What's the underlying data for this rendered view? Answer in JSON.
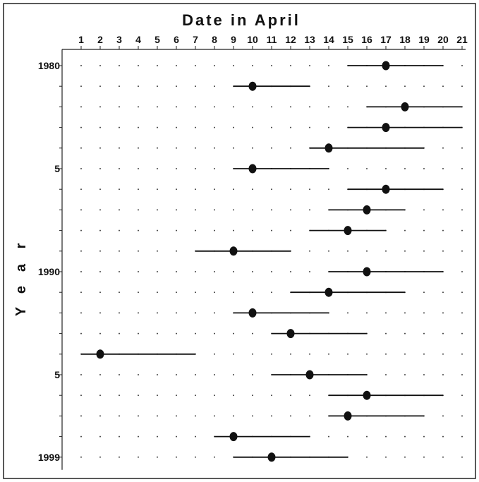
{
  "chart_data": {
    "type": "range_dot",
    "title": "Date in April",
    "xlabel": "Date in April",
    "ylabel": "Year",
    "x_ticks": [
      1,
      2,
      3,
      4,
      5,
      6,
      7,
      8,
      9,
      10,
      11,
      12,
      13,
      14,
      15,
      16,
      17,
      18,
      19,
      20,
      21
    ],
    "x_range": [
      0,
      21.5
    ],
    "y_tick_labels": [
      {
        "year": 1980,
        "label": "1980"
      },
      {
        "year": 1985,
        "label": "5"
      },
      {
        "year": 1990,
        "label": "1990"
      },
      {
        "year": 1995,
        "label": "5"
      },
      {
        "year": 1999,
        "label": "1999"
      }
    ],
    "y_range": [
      1980,
      1999
    ],
    "grid": "dotted",
    "data": [
      {
        "year": 1980,
        "start": 15,
        "mean": 17,
        "end": 20
      },
      {
        "year": 1981,
        "start": 9,
        "mean": 10,
        "end": 13
      },
      {
        "year": 1982,
        "start": 16,
        "mean": 18,
        "end": 21
      },
      {
        "year": 1983,
        "start": 15,
        "mean": 17,
        "end": 21
      },
      {
        "year": 1984,
        "start": 13,
        "mean": 14,
        "end": 19
      },
      {
        "year": 1985,
        "start": 9,
        "mean": 10,
        "end": 14
      },
      {
        "year": 1986,
        "start": 15,
        "mean": 17,
        "end": 20
      },
      {
        "year": 1987,
        "start": 14,
        "mean": 16,
        "end": 18
      },
      {
        "year": 1988,
        "start": 13,
        "mean": 15,
        "end": 17
      },
      {
        "year": 1989,
        "start": 7,
        "mean": 9,
        "end": 12
      },
      {
        "year": 1990,
        "start": 14,
        "mean": 16,
        "end": 20
      },
      {
        "year": 1991,
        "start": 12,
        "mean": 14,
        "end": 18
      },
      {
        "year": 1992,
        "start": 9,
        "mean": 10,
        "end": 14
      },
      {
        "year": 1993,
        "start": 11,
        "mean": 12,
        "end": 16
      },
      {
        "year": 1994,
        "start": 1,
        "mean": 2,
        "end": 7
      },
      {
        "year": 1995,
        "start": 11,
        "mean": 13,
        "end": 16
      },
      {
        "year": 1996,
        "start": 14,
        "mean": 16,
        "end": 20
      },
      {
        "year": 1997,
        "start": 14,
        "mean": 15,
        "end": 19
      },
      {
        "year": 1998,
        "start": 8,
        "mean": 9,
        "end": 13
      },
      {
        "year": 1999,
        "start": 9,
        "mean": 11,
        "end": 15
      }
    ]
  }
}
